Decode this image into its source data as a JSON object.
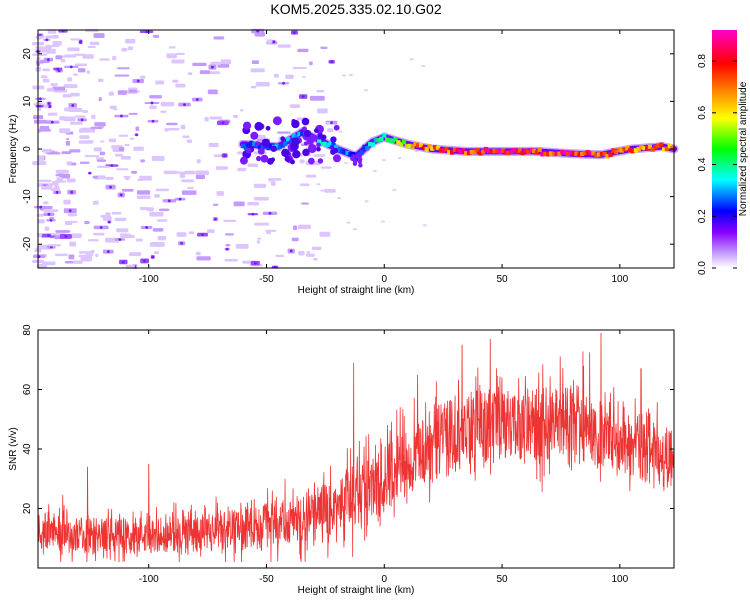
{
  "title": "KOM5.2025.335.02.10.G02",
  "chart_data": [
    {
      "type": "heatmap",
      "title": "KOM5.2025.335.02.10.G02",
      "xlabel": "Height of straight line (km)",
      "ylabel": "Frequency (Hz)",
      "xlim": [
        -147,
        123
      ],
      "ylim": [
        -25,
        25
      ],
      "xticks": [
        -100,
        -50,
        0,
        50,
        100
      ],
      "yticks": [
        -20,
        -10,
        0,
        10,
        20
      ],
      "xtick_labels": [
        "-100",
        "-50",
        "0",
        "50",
        "100"
      ],
      "ytick_labels": [
        "-20",
        "-10",
        "0",
        "10",
        "20"
      ],
      "colorbar": {
        "label": "Normalized spectral amplitude",
        "range": [
          0,
          0.92
        ],
        "ticks": [
          0.0,
          0.2,
          0.4,
          0.6,
          0.8
        ],
        "tick_labels": [
          "0.0",
          "0.2",
          "0.4",
          "0.6",
          "0.8"
        ],
        "colormap": [
          "#ffffff",
          "#8800ff",
          "#0000ff",
          "#00ffff",
          "#00ff00",
          "#ffff00",
          "#ff8800",
          "#ff0000",
          "#ff00cc"
        ]
      },
      "ridge": {
        "description": "dominant spectral line near 0 Hz",
        "points": [
          {
            "x": -60,
            "f": 1.0,
            "amp": 0.25
          },
          {
            "x": -45,
            "f": 0.5,
            "amp": 0.3
          },
          {
            "x": -35,
            "f": 3.5,
            "amp": 0.3
          },
          {
            "x": -28,
            "f": 2.0,
            "amp": 0.35
          },
          {
            "x": -20,
            "f": 0.0,
            "amp": 0.3
          },
          {
            "x": -12,
            "f": -1.5,
            "amp": 0.25
          },
          {
            "x": -5,
            "f": 1.5,
            "amp": 0.35
          },
          {
            "x": 0,
            "f": 2.5,
            "amp": 0.45
          },
          {
            "x": 10,
            "f": 1.0,
            "amp": 0.6
          },
          {
            "x": 20,
            "f": 0.0,
            "amp": 0.75
          },
          {
            "x": 35,
            "f": -0.5,
            "amp": 0.8
          },
          {
            "x": 50,
            "f": -0.5,
            "amp": 0.85
          },
          {
            "x": 65,
            "f": -0.5,
            "amp": 0.8
          },
          {
            "x": 80,
            "f": -1.0,
            "amp": 0.85
          },
          {
            "x": 92,
            "f": -1.2,
            "amp": 0.8
          },
          {
            "x": 105,
            "f": 0.0,
            "amp": 0.75
          },
          {
            "x": 118,
            "f": 0.5,
            "amp": 0.7
          },
          {
            "x": 123,
            "f": 0.0,
            "amp": 0.65
          }
        ]
      }
    },
    {
      "type": "line",
      "xlabel": "Height of straight line (km)",
      "ylabel": "SNR (v/v)",
      "xlim": [
        -147,
        123
      ],
      "ylim": [
        0,
        80
      ],
      "xticks": [
        -100,
        -50,
        0,
        50,
        100
      ],
      "yticks": [
        20,
        40,
        60,
        80
      ],
      "xtick_labels": [
        "-100",
        "-50",
        "0",
        "50",
        "100"
      ],
      "ytick_labels": [
        "20",
        "40",
        "60",
        "80"
      ],
      "color": "#ee3333",
      "envelope": {
        "x": [
          -147,
          -120,
          -100,
          -80,
          -60,
          -40,
          -30,
          -20,
          -10,
          0,
          10,
          20,
          30,
          40,
          50,
          60,
          70,
          80,
          90,
          100,
          110,
          123
        ],
        "median": [
          12,
          11,
          11,
          12,
          13,
          15,
          18,
          21,
          25,
          30,
          35,
          41,
          45,
          47,
          48,
          48,
          49,
          49,
          48,
          44,
          40,
          37
        ],
        "spread": [
          7,
          6,
          6,
          7,
          7,
          8,
          9,
          10,
          11,
          12,
          12,
          13,
          13,
          13,
          13,
          13,
          13,
          13,
          13,
          12,
          11,
          11
        ]
      },
      "peaks": [
        {
          "x": -147,
          "y": 28
        },
        {
          "x": -126,
          "y": 34
        },
        {
          "x": -100,
          "y": 35
        },
        {
          "x": -13,
          "y": 69
        },
        {
          "x": 33,
          "y": 75
        },
        {
          "x": 45,
          "y": 77
        },
        {
          "x": 92,
          "y": 79
        },
        {
          "x": 109,
          "y": 67
        }
      ]
    }
  ]
}
